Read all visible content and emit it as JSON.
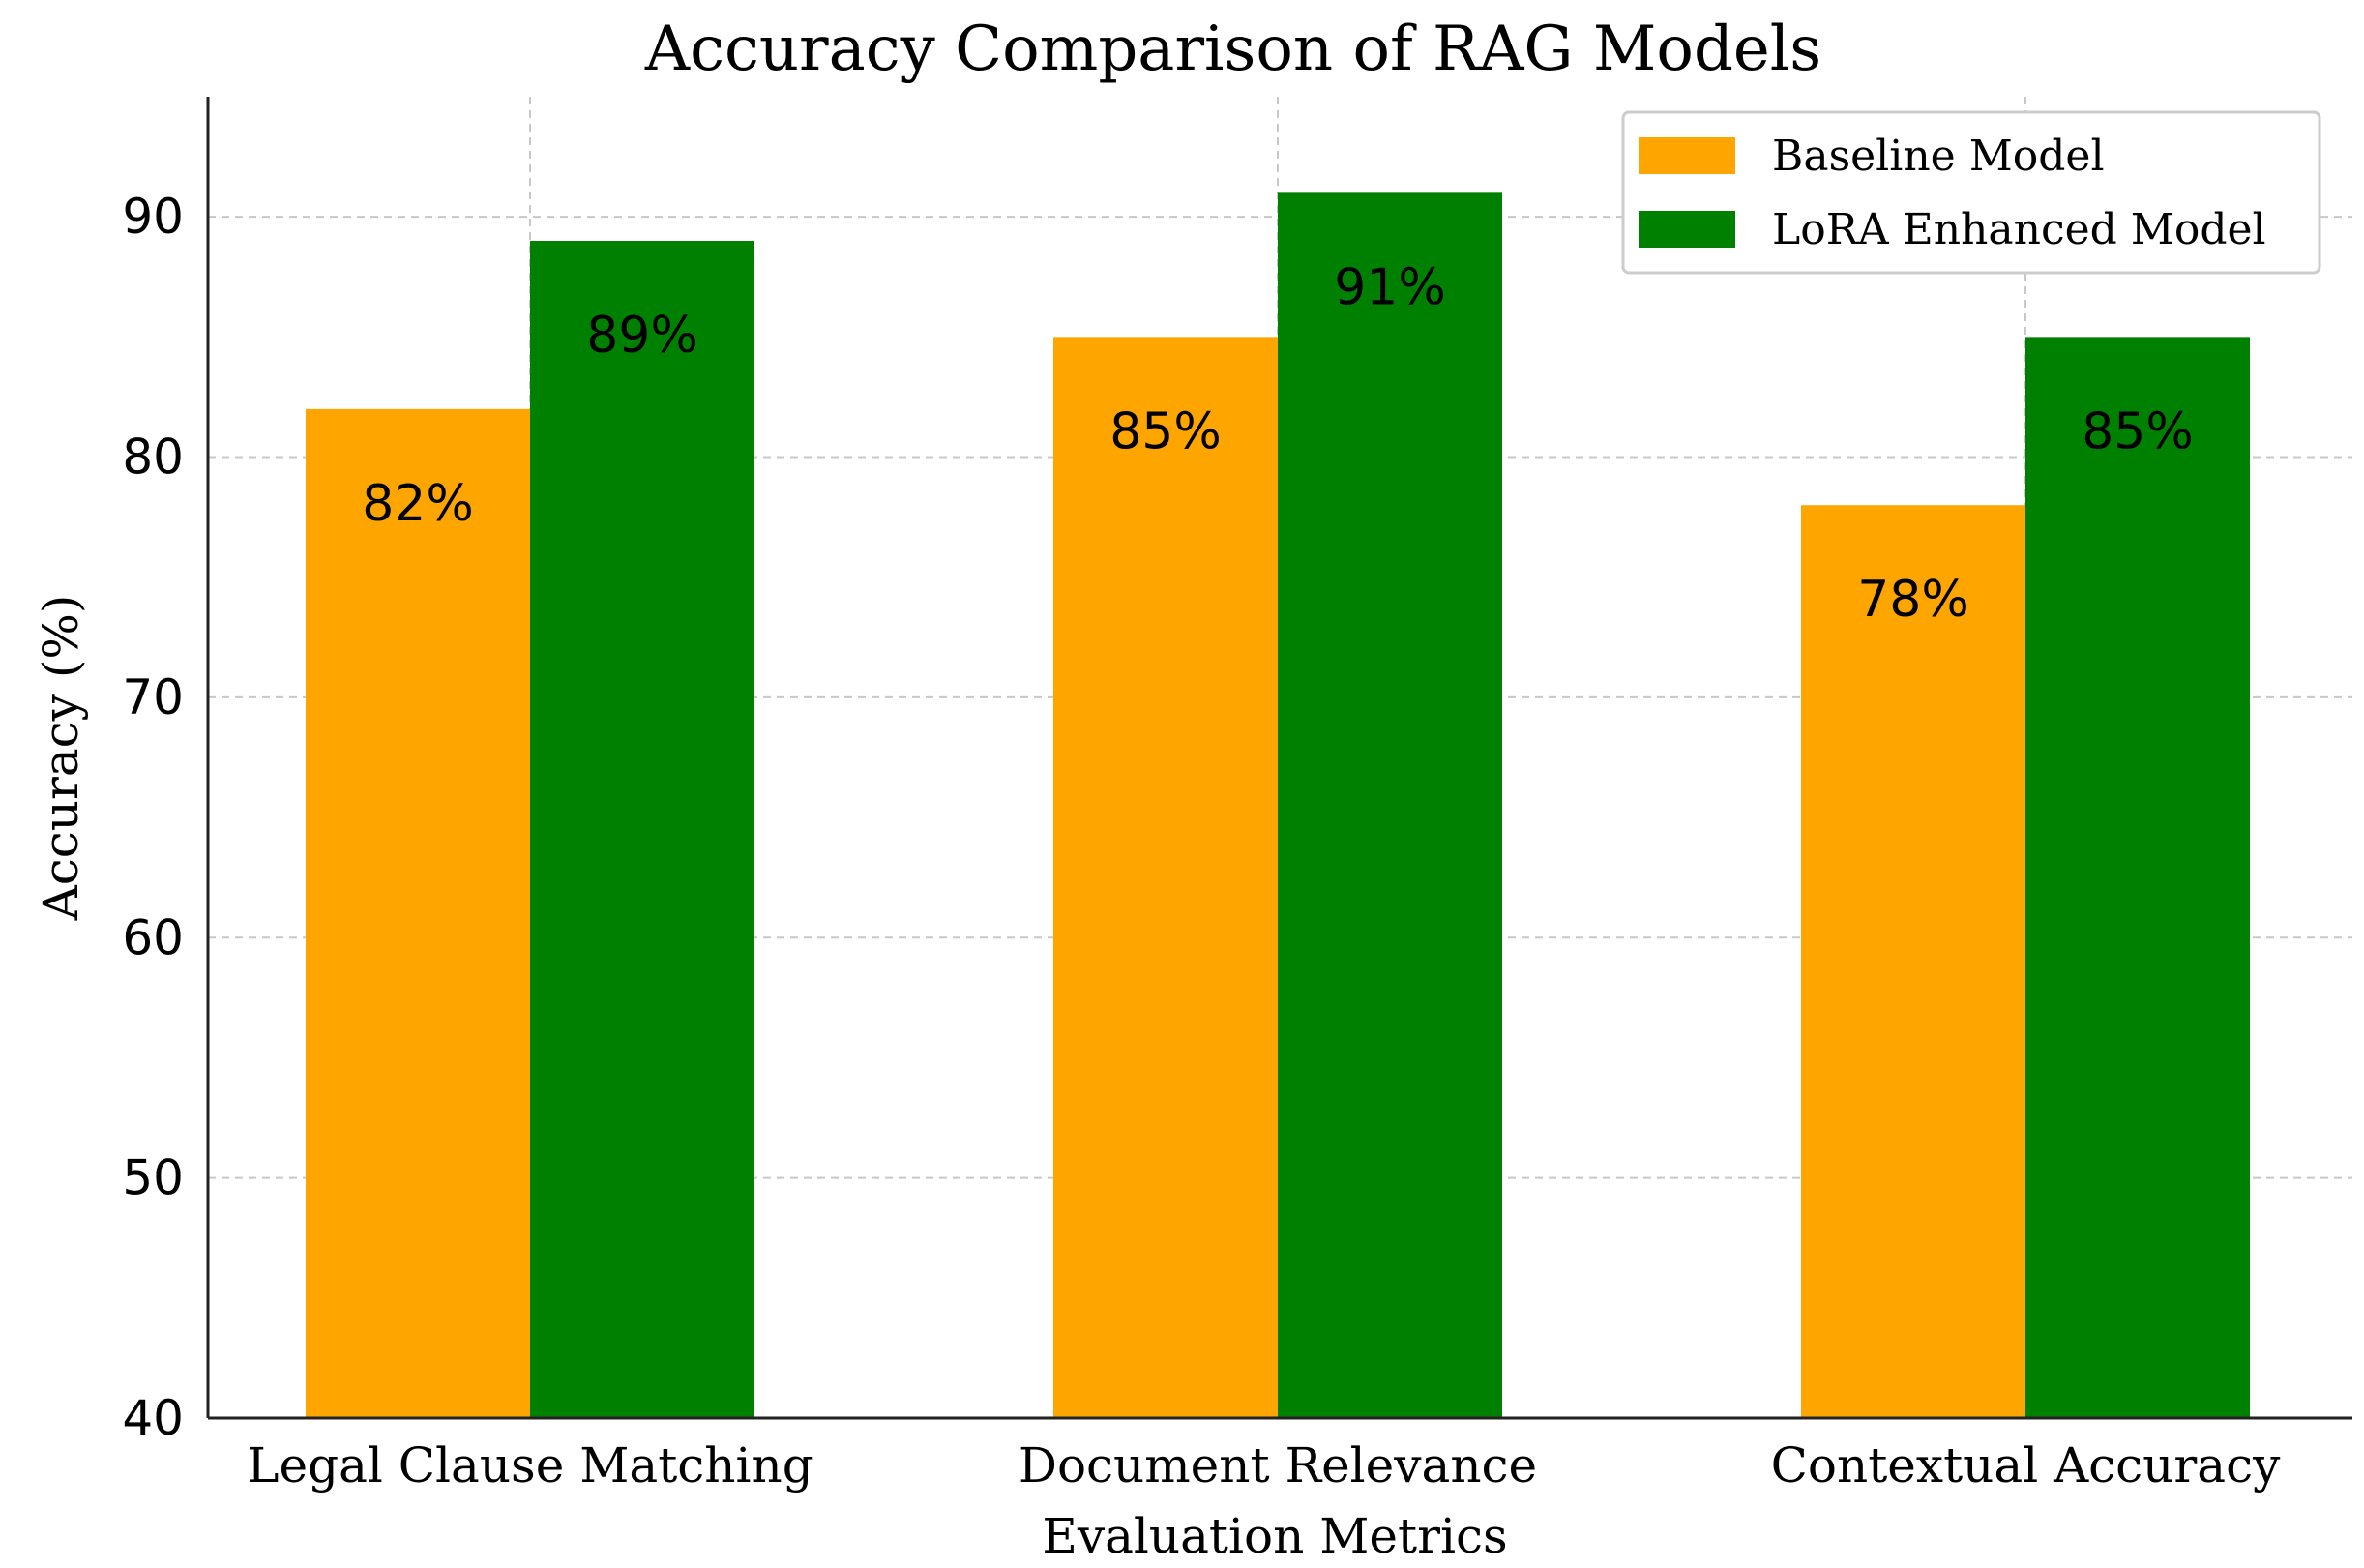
{
  "chart_data": {
    "type": "bar",
    "title": "Accuracy Comparison of RAG Models",
    "xlabel": "Evaluation Metrics",
    "ylabel": "Accuracy (%)",
    "ylim": [
      40,
      95
    ],
    "yticks": [
      40,
      50,
      60,
      70,
      80,
      90
    ],
    "grid": true,
    "legend_position": "top-right",
    "categories": [
      "Legal Clause Matching",
      "Document Relevance",
      "Contextual Accuracy"
    ],
    "series": [
      {
        "name": "Baseline Model",
        "color": "#ffa500",
        "values": [
          82,
          85,
          78
        ],
        "labels": [
          "82%",
          "85%",
          "78%"
        ]
      },
      {
        "name": "LoRA Enhanced Model",
        "color": "#008000",
        "values": [
          89,
          91,
          85
        ],
        "labels": [
          "89%",
          "91%",
          "85%"
        ]
      }
    ]
  }
}
